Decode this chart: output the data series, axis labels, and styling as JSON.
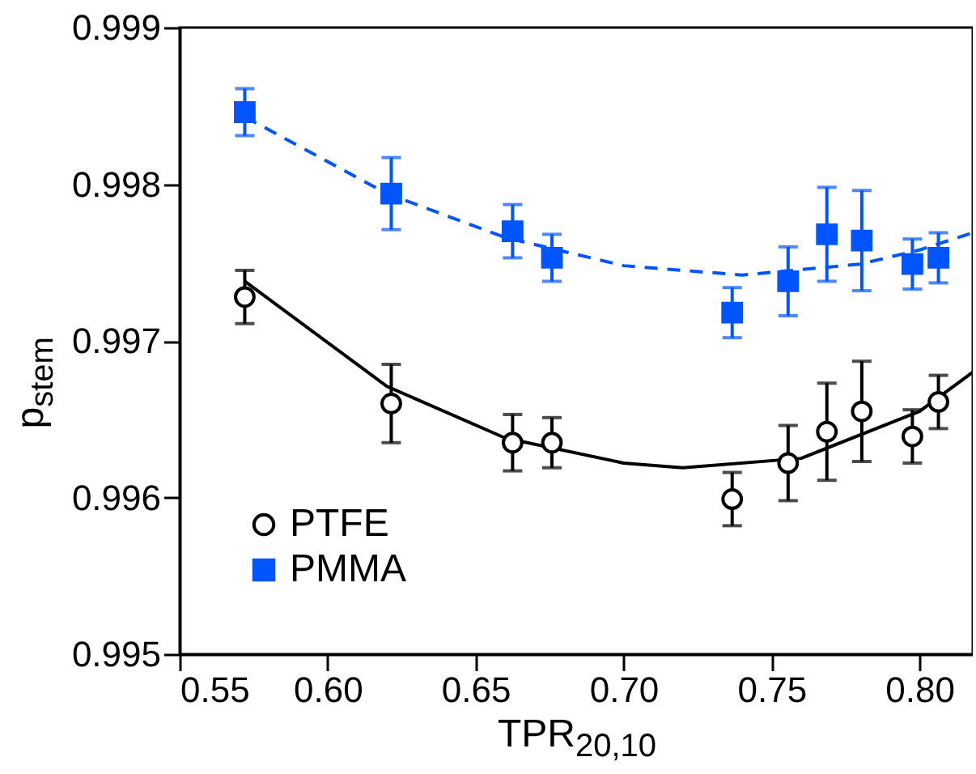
{
  "chart_data": {
    "type": "scatter",
    "xlabel": "TPR$_{20,10}$",
    "ylabel": "p$_{stem}$",
    "xlim": [
      0.55,
      0.818
    ],
    "xticks": [
      {
        "value": 0.55,
        "label": "0.55"
      },
      {
        "value": 0.6,
        "label": "0.60"
      },
      {
        "value": 0.65,
        "label": "0.65"
      },
      {
        "value": 0.7,
        "label": "0.70"
      },
      {
        "value": 0.75,
        "label": "0.75"
      },
      {
        "value": 0.8,
        "label": "0.80"
      }
    ],
    "ylim": [
      0.995,
      0.999
    ],
    "yticks": [
      0.995,
      0.996,
      0.997,
      0.998,
      0.999
    ],
    "grid": false,
    "legend": "bottom left",
    "series": [
      {
        "name": "PTFE",
        "color": "#000000",
        "marker": "circle",
        "x": [
          0.572,
          0.6215,
          0.6625,
          0.6758,
          0.7367,
          0.7556,
          0.7687,
          0.7805,
          0.7976,
          0.8064
        ],
        "values": [
          0.99728,
          0.9966,
          0.99635,
          0.99635,
          0.99599,
          0.99622,
          0.99642,
          0.99655,
          0.99639,
          0.99661
        ],
        "errors": [
          0.00017,
          0.00025,
          0.00018,
          0.00016,
          0.00017,
          0.00024,
          0.00031,
          0.00032,
          0.00017,
          0.00017
        ]
      },
      {
        "name": "PMMA",
        "color": "#0055ff",
        "marker": "square",
        "x": [
          0.572,
          0.6215,
          0.6625,
          0.6758,
          0.7367,
          0.7556,
          0.7687,
          0.7805,
          0.7976,
          0.8064
        ],
        "values": [
          0.99846,
          0.99794,
          0.9977,
          0.99753,
          0.99718,
          0.99738,
          0.99768,
          0.99764,
          0.99749,
          0.99753
        ],
        "errors": [
          0.00015,
          0.00023,
          0.00017,
          0.00015,
          0.00016,
          0.00022,
          0.0003,
          0.00032,
          0.00016,
          0.00016
        ]
      },
      {
        "type": "line",
        "color": "#000000",
        "line_style": "solid",
        "marker": "none",
        "x": [
          0.572,
          0.62,
          0.66,
          0.7,
          0.72,
          0.76,
          0.8,
          0.818
        ],
        "values": [
          0.99738,
          0.99671,
          0.99638,
          0.99622,
          0.99619,
          0.99625,
          0.99655,
          0.9968
        ]
      },
      {
        "type": "line",
        "color": "#0055ff",
        "line_style": "dashed",
        "marker": "none",
        "x": [
          0.572,
          0.62,
          0.66,
          0.7,
          0.74,
          0.78,
          0.8,
          0.818
        ],
        "values": [
          0.99843,
          0.99794,
          0.99766,
          0.99748,
          0.99742,
          0.99749,
          0.99758,
          0.99769
        ]
      }
    ]
  }
}
